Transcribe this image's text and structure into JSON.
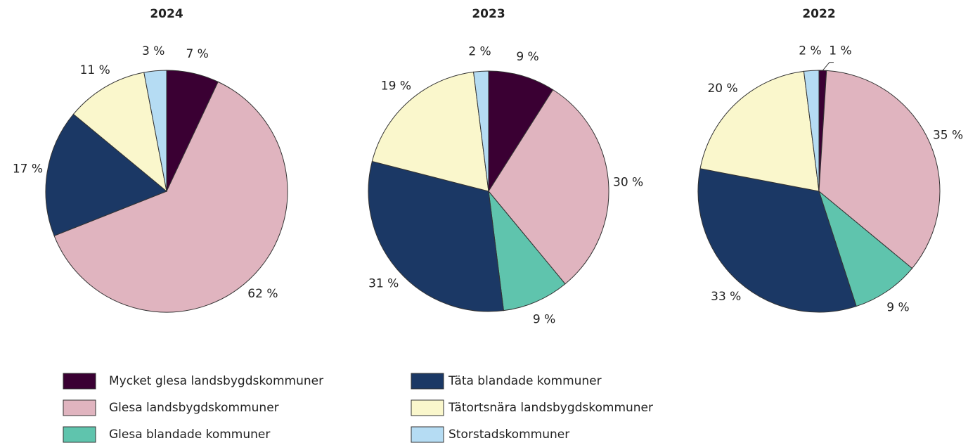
{
  "chart_data": [
    {
      "type": "pie",
      "title": "2024",
      "categories": [
        "Mycket glesa landsbygdskommuner",
        "Glesa landsbygdskommuner",
        "Täta blandade kommuner",
        "Tätortsnära landsbygdskommuner",
        "Storstadskommuner"
      ],
      "values": [
        7,
        62,
        17,
        11,
        3
      ],
      "value_labels": [
        "7 %",
        "62 %",
        "17 %",
        "11 %",
        "3 %"
      ],
      "colors": [
        "#3a0033",
        "#e0b4bf",
        "#1b3865",
        "#faf7cc",
        "#b5dcf3"
      ]
    },
    {
      "type": "pie",
      "title": "2023",
      "categories": [
        "Mycket glesa landsbygdskommuner",
        "Glesa landsbygdskommuner",
        "Glesa blandade kommuner",
        "Täta blandade kommuner",
        "Tätortsnära landsbygdskommuner",
        "Storstadskommuner"
      ],
      "values": [
        9,
        30,
        9,
        31,
        19,
        2
      ],
      "value_labels": [
        "9 %",
        "30 %",
        "9 %",
        "31 %",
        "19 %",
        "2 %"
      ],
      "colors": [
        "#3a0033",
        "#e0b4bf",
        "#5fc4ad",
        "#1b3865",
        "#faf7cc",
        "#b5dcf3"
      ]
    },
    {
      "type": "pie",
      "title": "2022",
      "categories": [
        "Mycket glesa landsbygdskommuner",
        "Glesa landsbygdskommuner",
        "Glesa blandade kommuner",
        "Täta blandade kommuner",
        "Tätortsnära landsbygdskommuner",
        "Storstadskommuner"
      ],
      "values": [
        1,
        35,
        9,
        33,
        20,
        2
      ],
      "value_labels": [
        "1 %",
        "35 %",
        "9 %",
        "33 %",
        "20 %",
        "2 %"
      ],
      "colors": [
        "#3a0033",
        "#e0b4bf",
        "#5fc4ad",
        "#1b3865",
        "#faf7cc",
        "#b5dcf3"
      ]
    }
  ],
  "legend": [
    {
      "name": "Mycket glesa landsbygdskommuner",
      "color": "#3a0033"
    },
    {
      "name": "Glesa landsbygdskommuner",
      "color": "#e0b4bf"
    },
    {
      "name": "Glesa blandade kommuner",
      "color": "#5fc4ad"
    },
    {
      "name": "Täta blandade kommuner",
      "color": "#1b3865"
    },
    {
      "name": "Tätortsnära landsbygdskommuner",
      "color": "#faf7cc"
    },
    {
      "name": "Storstadskommuner",
      "color": "#b5dcf3"
    }
  ]
}
